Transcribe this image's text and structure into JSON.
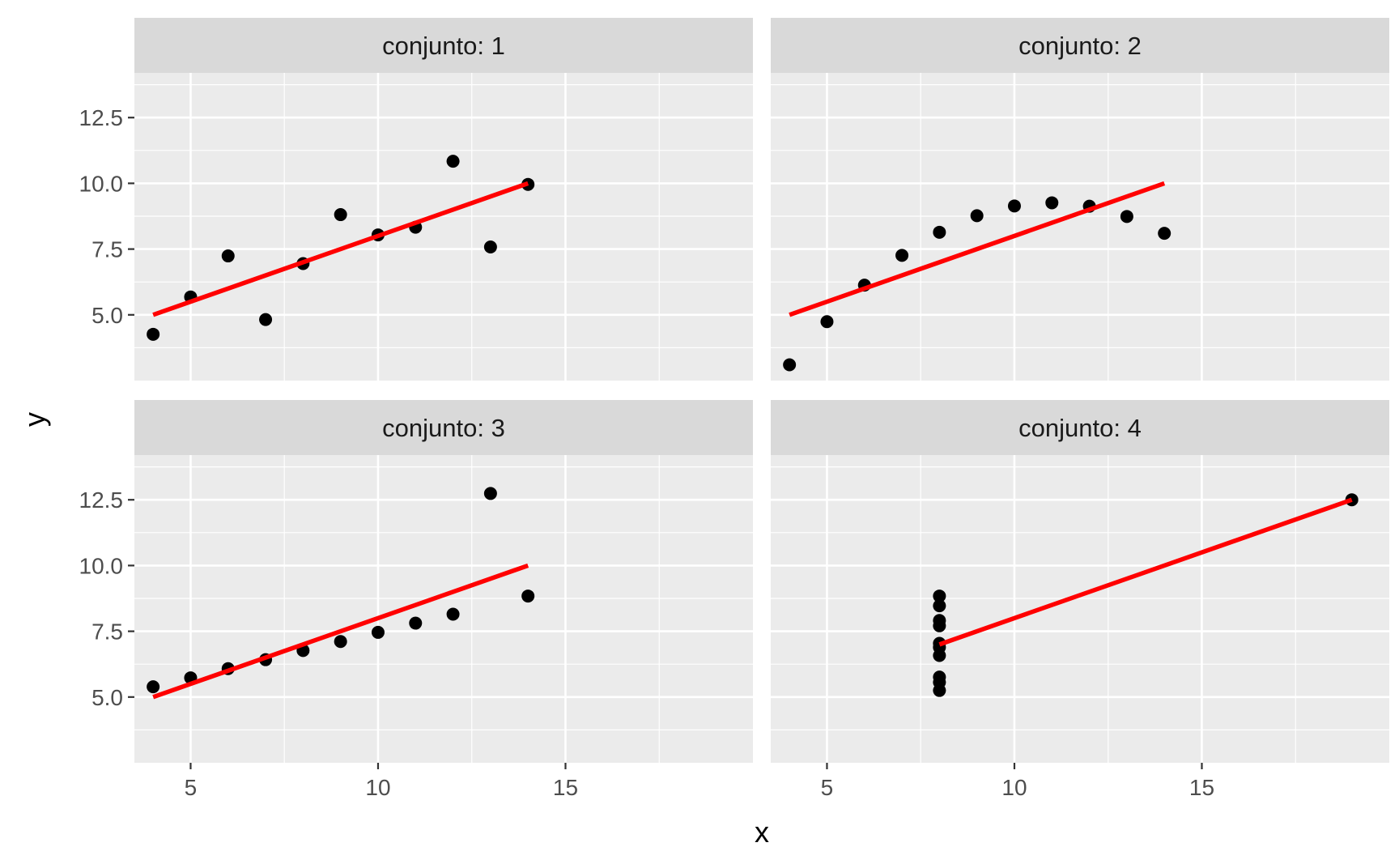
{
  "chart_data": {
    "type": "scatter",
    "layout": "facet 2x2, shared axes",
    "xlabel": "x",
    "ylabel": "y",
    "xlim": [
      3.5,
      20
    ],
    "ylim": [
      2.5,
      14.2
    ],
    "x_ticks": [
      5,
      10,
      15
    ],
    "x_tick_labels": [
      "5",
      "10",
      "15"
    ],
    "y_ticks": [
      5.0,
      7.5,
      10.0,
      12.5
    ],
    "y_tick_labels": [
      "5.0",
      "7.5",
      "10.0",
      "12.5"
    ],
    "grid": true,
    "colors": {
      "panel_background": "#ebebeb",
      "strip_background": "#d9d9d9",
      "grid": "#ffffff",
      "points": "#000000",
      "fit_line": "#ff0000"
    },
    "facets": [
      {
        "label": "conjunto: 1",
        "points": [
          {
            "x": 4,
            "y": 4.26
          },
          {
            "x": 5,
            "y": 5.68
          },
          {
            "x": 6,
            "y": 7.24
          },
          {
            "x": 7,
            "y": 4.82
          },
          {
            "x": 8,
            "y": 6.95
          },
          {
            "x": 9,
            "y": 8.81
          },
          {
            "x": 10,
            "y": 8.04
          },
          {
            "x": 11,
            "y": 8.33
          },
          {
            "x": 12,
            "y": 10.84
          },
          {
            "x": 13,
            "y": 7.58
          },
          {
            "x": 14,
            "y": 9.96
          }
        ],
        "fit": {
          "x": [
            4,
            14
          ],
          "y": [
            5.0,
            10.0
          ]
        }
      },
      {
        "label": "conjunto: 2",
        "points": [
          {
            "x": 4,
            "y": 3.1
          },
          {
            "x": 5,
            "y": 4.74
          },
          {
            "x": 6,
            "y": 6.13
          },
          {
            "x": 7,
            "y": 7.26
          },
          {
            "x": 8,
            "y": 8.14
          },
          {
            "x": 9,
            "y": 8.77
          },
          {
            "x": 10,
            "y": 9.14
          },
          {
            "x": 11,
            "y": 9.26
          },
          {
            "x": 12,
            "y": 9.13
          },
          {
            "x": 13,
            "y": 8.74
          },
          {
            "x": 14,
            "y": 8.1
          }
        ],
        "fit": {
          "x": [
            4,
            14
          ],
          "y": [
            5.0,
            10.0
          ]
        }
      },
      {
        "label": "conjunto: 3",
        "points": [
          {
            "x": 4,
            "y": 5.39
          },
          {
            "x": 5,
            "y": 5.73
          },
          {
            "x": 6,
            "y": 6.08
          },
          {
            "x": 7,
            "y": 6.42
          },
          {
            "x": 8,
            "y": 6.77
          },
          {
            "x": 9,
            "y": 7.11
          },
          {
            "x": 10,
            "y": 7.46
          },
          {
            "x": 11,
            "y": 7.81
          },
          {
            "x": 12,
            "y": 8.15
          },
          {
            "x": 13,
            "y": 12.74
          },
          {
            "x": 14,
            "y": 8.84
          }
        ],
        "fit": {
          "x": [
            4,
            14
          ],
          "y": [
            5.0,
            10.0
          ]
        }
      },
      {
        "label": "conjunto: 4",
        "points": [
          {
            "x": 8,
            "y": 6.58
          },
          {
            "x": 8,
            "y": 5.76
          },
          {
            "x": 8,
            "y": 7.71
          },
          {
            "x": 8,
            "y": 8.84
          },
          {
            "x": 8,
            "y": 8.47
          },
          {
            "x": 8,
            "y": 7.04
          },
          {
            "x": 8,
            "y": 5.25
          },
          {
            "x": 19,
            "y": 12.5
          },
          {
            "x": 8,
            "y": 5.56
          },
          {
            "x": 8,
            "y": 7.91
          },
          {
            "x": 8,
            "y": 6.89
          }
        ],
        "fit": {
          "x": [
            8,
            19
          ],
          "y": [
            7.0,
            12.5
          ]
        }
      }
    ]
  }
}
